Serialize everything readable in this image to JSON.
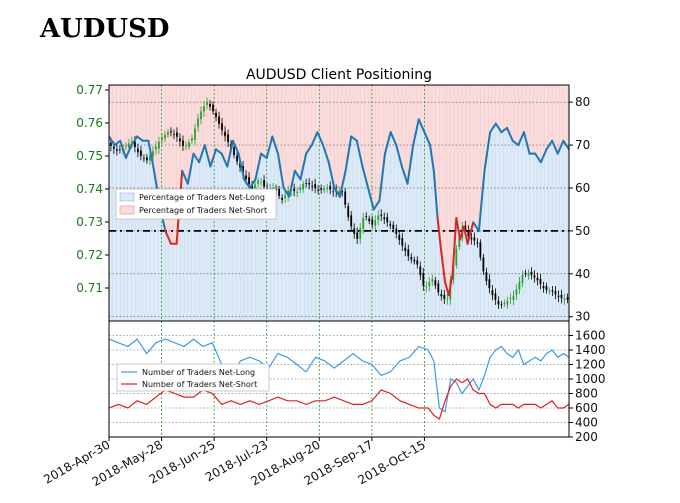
{
  "heading": "AUDUSD",
  "chart_data": {
    "type": "line",
    "title": "AUDUSD Client Positioning",
    "x_ticks": [
      "2018-Apr-30",
      "2018-May-28",
      "2018-Jun-25",
      "2018-Jul-23",
      "2018-Aug-20",
      "2018-Sep-17",
      "2018-Oct-15"
    ],
    "x_range": [
      "2018-04-30",
      "2018-10-30"
    ],
    "price_axis": {
      "ticks": [
        "0.77",
        "0.76",
        "0.75",
        "0.74",
        "0.73",
        "0.72",
        "0.71"
      ],
      "range": [
        0.7,
        0.7715
      ]
    },
    "percent_axis": {
      "ticks": [
        "80",
        "70",
        "60",
        "50",
        "40",
        "30"
      ],
      "range": [
        29,
        84
      ]
    },
    "count_axis": {
      "ticks": [
        "1600",
        "1400",
        "1200",
        "1000",
        "800",
        "600",
        "400",
        "200"
      ],
      "range": [
        200,
        1800
      ]
    },
    "legend_top": [
      "Percentage of Traders Net-Long",
      "Percentage of Traders Net-Short"
    ],
    "legend_bottom": [
      "Number of Traders Net-Long",
      "Number of Traders Net-Short"
    ],
    "reference_line_percent": 50,
    "colors": {
      "net_long": "#1f77b4",
      "net_short": "#d62728",
      "long_fill": "#dce9f7",
      "short_fill": "#fbdcdc",
      "count_long": "#3d9be9",
      "count_short": "#e02020",
      "grid": "#2ca02c",
      "price_up": "#2ca02c",
      "price_down": "#000000"
    },
    "percent_net_long": [
      [
        0,
        72
      ],
      [
        3,
        70
      ],
      [
        6,
        71
      ],
      [
        9,
        67
      ],
      [
        12,
        70
      ],
      [
        15,
        72
      ],
      [
        18,
        71
      ],
      [
        21,
        71
      ],
      [
        24,
        64
      ],
      [
        27,
        56
      ],
      [
        30,
        50
      ],
      [
        33,
        47
      ],
      [
        36,
        47
      ],
      [
        39,
        64
      ],
      [
        42,
        61
      ],
      [
        45,
        68
      ],
      [
        48,
        66
      ],
      [
        51,
        70
      ],
      [
        54,
        65
      ],
      [
        57,
        69
      ],
      [
        60,
        68
      ],
      [
        63,
        65
      ],
      [
        66,
        71
      ],
      [
        69,
        68
      ],
      [
        72,
        62
      ],
      [
        75,
        60
      ],
      [
        78,
        62
      ],
      [
        81,
        68
      ],
      [
        84,
        67
      ],
      [
        87,
        72
      ],
      [
        90,
        68
      ],
      [
        93,
        60
      ],
      [
        96,
        58
      ],
      [
        99,
        64
      ],
      [
        102,
        62
      ],
      [
        105,
        68
      ],
      [
        108,
        70
      ],
      [
        111,
        73
      ],
      [
        114,
        70
      ],
      [
        117,
        66
      ],
      [
        120,
        60
      ],
      [
        123,
        58
      ],
      [
        126,
        64
      ],
      [
        129,
        72
      ],
      [
        132,
        71
      ],
      [
        135,
        65
      ],
      [
        138,
        60
      ],
      [
        141,
        55
      ],
      [
        144,
        57
      ],
      [
        147,
        68
      ],
      [
        150,
        73
      ],
      [
        153,
        70
      ],
      [
        156,
        65
      ],
      [
        159,
        61
      ],
      [
        162,
        70
      ],
      [
        165,
        76
      ],
      [
        168,
        73
      ],
      [
        171,
        70
      ],
      [
        173,
        64
      ],
      [
        175,
        53
      ],
      [
        177,
        45
      ],
      [
        179,
        38
      ],
      [
        181,
        35
      ],
      [
        183,
        40
      ],
      [
        185,
        53
      ],
      [
        187,
        48
      ],
      [
        189,
        51
      ],
      [
        191,
        47
      ],
      [
        194,
        52
      ],
      [
        197,
        50
      ],
      [
        200,
        64
      ],
      [
        203,
        73
      ],
      [
        206,
        75
      ],
      [
        209,
        73
      ],
      [
        212,
        74
      ],
      [
        215,
        71
      ],
      [
        218,
        70
      ],
      [
        221,
        73
      ],
      [
        224,
        68
      ],
      [
        227,
        68
      ],
      [
        230,
        66
      ],
      [
        233,
        69
      ],
      [
        236,
        71
      ],
      [
        239,
        68
      ],
      [
        242,
        71
      ],
      [
        245,
        69
      ]
    ],
    "price_close": [
      [
        0,
        0.7535
      ],
      [
        4,
        0.7515
      ],
      [
        8,
        0.7525
      ],
      [
        12,
        0.7545
      ],
      [
        16,
        0.7505
      ],
      [
        20,
        0.7485
      ],
      [
        24,
        0.752
      ],
      [
        28,
        0.7555
      ],
      [
        32,
        0.7575
      ],
      [
        36,
        0.756
      ],
      [
        40,
        0.7525
      ],
      [
        44,
        0.755
      ],
      [
        48,
        0.7625
      ],
      [
        52,
        0.7665
      ],
      [
        56,
        0.763
      ],
      [
        60,
        0.758
      ],
      [
        64,
        0.7535
      ],
      [
        68,
        0.7485
      ],
      [
        72,
        0.744
      ],
      [
        76,
        0.74
      ],
      [
        80,
        0.743
      ],
      [
        84,
        0.7395
      ],
      [
        88,
        0.7405
      ],
      [
        92,
        0.7365
      ],
      [
        96,
        0.74
      ],
      [
        100,
        0.739
      ],
      [
        104,
        0.742
      ],
      [
        108,
        0.741
      ],
      [
        112,
        0.7395
      ],
      [
        116,
        0.7405
      ],
      [
        120,
        0.739
      ],
      [
        124,
        0.7395
      ],
      [
        128,
        0.73
      ],
      [
        132,
        0.7245
      ],
      [
        136,
        0.7325
      ],
      [
        140,
        0.729
      ],
      [
        144,
        0.7325
      ],
      [
        148,
        0.73
      ],
      [
        152,
        0.7275
      ],
      [
        156,
        0.723
      ],
      [
        160,
        0.719
      ],
      [
        164,
        0.7175
      ],
      [
        168,
        0.7095
      ],
      [
        172,
        0.713
      ],
      [
        176,
        0.708
      ],
      [
        180,
        0.706
      ],
      [
        184,
        0.7195
      ],
      [
        188,
        0.729
      ],
      [
        192,
        0.725
      ],
      [
        196,
        0.724
      ],
      [
        200,
        0.7135
      ],
      [
        204,
        0.708
      ],
      [
        208,
        0.7045
      ],
      [
        212,
        0.706
      ],
      [
        216,
        0.708
      ],
      [
        220,
        0.714
      ],
      [
        224,
        0.7145
      ],
      [
        228,
        0.7125
      ],
      [
        232,
        0.7095
      ],
      [
        236,
        0.709
      ],
      [
        240,
        0.707
      ],
      [
        245,
        0.7065
      ]
    ],
    "count_net_long": [
      [
        0,
        1550
      ],
      [
        5,
        1500
      ],
      [
        10,
        1450
      ],
      [
        15,
        1550
      ],
      [
        20,
        1350
      ],
      [
        25,
        1500
      ],
      [
        30,
        1550
      ],
      [
        35,
        1500
      ],
      [
        40,
        1450
      ],
      [
        45,
        1550
      ],
      [
        50,
        1450
      ],
      [
        55,
        1500
      ],
      [
        60,
        1200
      ],
      [
        65,
        1000
      ],
      [
        70,
        1250
      ],
      [
        75,
        1300
      ],
      [
        80,
        1250
      ],
      [
        85,
        1150
      ],
      [
        90,
        1350
      ],
      [
        95,
        1300
      ],
      [
        100,
        1200
      ],
      [
        105,
        1100
      ],
      [
        110,
        1300
      ],
      [
        115,
        1250
      ],
      [
        120,
        1150
      ],
      [
        125,
        1250
      ],
      [
        130,
        1350
      ],
      [
        135,
        1250
      ],
      [
        140,
        1200
      ],
      [
        145,
        1050
      ],
      [
        150,
        1100
      ],
      [
        155,
        1250
      ],
      [
        160,
        1300
      ],
      [
        165,
        1450
      ],
      [
        170,
        1400
      ],
      [
        173,
        1250
      ],
      [
        176,
        600
      ],
      [
        179,
        550
      ],
      [
        182,
        1000
      ],
      [
        185,
        950
      ],
      [
        188,
        800
      ],
      [
        191,
        900
      ],
      [
        194,
        1000
      ],
      [
        197,
        850
      ],
      [
        200,
        1050
      ],
      [
        203,
        1300
      ],
      [
        206,
        1400
      ],
      [
        209,
        1450
      ],
      [
        212,
        1350
      ],
      [
        215,
        1300
      ],
      [
        218,
        1400
      ],
      [
        221,
        1200
      ],
      [
        224,
        1250
      ],
      [
        227,
        1300
      ],
      [
        230,
        1250
      ],
      [
        233,
        1350
      ],
      [
        236,
        1400
      ],
      [
        239,
        1300
      ],
      [
        242,
        1350
      ],
      [
        245,
        1300
      ]
    ],
    "count_net_short": [
      [
        0,
        600
      ],
      [
        5,
        650
      ],
      [
        10,
        600
      ],
      [
        15,
        700
      ],
      [
        20,
        650
      ],
      [
        25,
        750
      ],
      [
        30,
        850
      ],
      [
        35,
        800
      ],
      [
        40,
        750
      ],
      [
        45,
        750
      ],
      [
        50,
        850
      ],
      [
        55,
        800
      ],
      [
        60,
        650
      ],
      [
        65,
        700
      ],
      [
        70,
        650
      ],
      [
        75,
        700
      ],
      [
        80,
        650
      ],
      [
        85,
        700
      ],
      [
        90,
        750
      ],
      [
        95,
        700
      ],
      [
        100,
        700
      ],
      [
        105,
        650
      ],
      [
        110,
        700
      ],
      [
        115,
        700
      ],
      [
        120,
        750
      ],
      [
        125,
        700
      ],
      [
        130,
        650
      ],
      [
        135,
        650
      ],
      [
        140,
        700
      ],
      [
        145,
        850
      ],
      [
        150,
        800
      ],
      [
        155,
        700
      ],
      [
        160,
        650
      ],
      [
        165,
        600
      ],
      [
        170,
        600
      ],
      [
        173,
        500
      ],
      [
        176,
        450
      ],
      [
        179,
        700
      ],
      [
        182,
        900
      ],
      [
        185,
        1000
      ],
      [
        188,
        950
      ],
      [
        191,
        1000
      ],
      [
        194,
        850
      ],
      [
        197,
        800
      ],
      [
        200,
        800
      ],
      [
        203,
        650
      ],
      [
        206,
        600
      ],
      [
        209,
        650
      ],
      [
        212,
        650
      ],
      [
        215,
        650
      ],
      [
        218,
        600
      ],
      [
        221,
        650
      ],
      [
        224,
        650
      ],
      [
        227,
        650
      ],
      [
        230,
        600
      ],
      [
        233,
        650
      ],
      [
        236,
        700
      ],
      [
        239,
        600
      ],
      [
        242,
        600
      ],
      [
        245,
        650
      ]
    ]
  }
}
